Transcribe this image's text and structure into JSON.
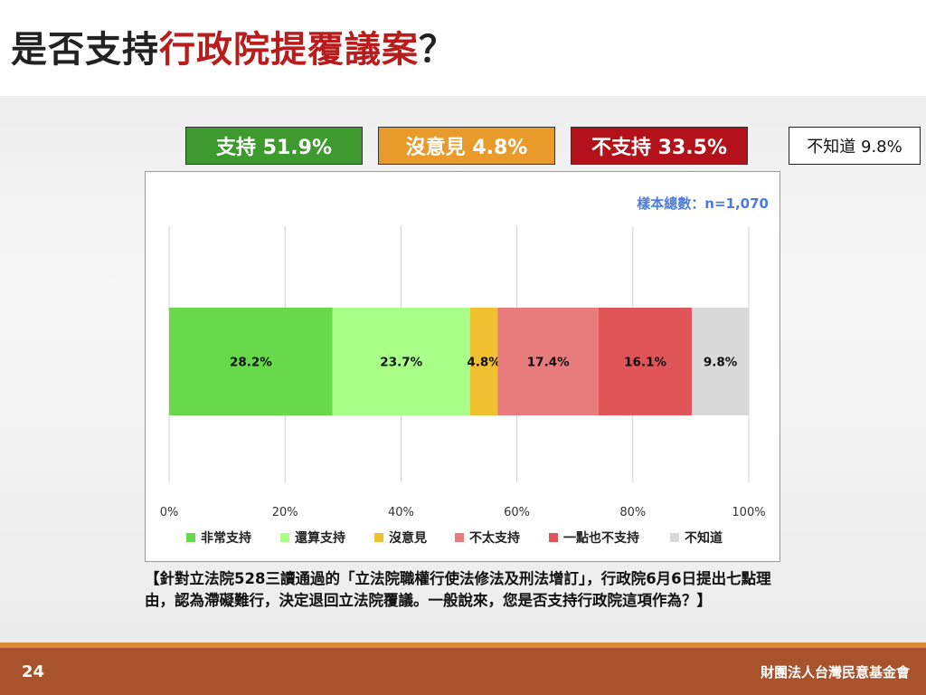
{
  "title": {
    "prefix": "是否支持",
    "highlight": "行政院提覆議案",
    "suffix": "？"
  },
  "summary": {
    "support": "支持 51.9%",
    "neutral": "沒意見 4.8%",
    "oppose": "不支持 33.5%",
    "dont_know": "不知道 9.8%"
  },
  "sample_size": "樣本總數：n=1,070",
  "colors": {
    "summary_support": "#3e9a2e",
    "summary_neutral": "#e89a2a",
    "summary_oppose": "#b3121b"
  },
  "chart_data": {
    "type": "bar",
    "orientation": "horizontal-stacked",
    "xlim": [
      0,
      100
    ],
    "x_ticks": [
      "0%",
      "20%",
      "40%",
      "60%",
      "80%",
      "100%"
    ],
    "grid": true,
    "legend_position": "bottom",
    "series": [
      {
        "name": "非常支持",
        "value": 28.2,
        "label": "28.2%",
        "color": "#67d94a"
      },
      {
        "name": "還算支持",
        "value": 23.7,
        "label": "23.7%",
        "color": "#aaff88"
      },
      {
        "name": "沒意見",
        "value": 4.8,
        "label": "4.8%",
        "color": "#f0c030"
      },
      {
        "name": "不太支持",
        "value": 17.4,
        "label": "17.4%",
        "color": "#e87c7c"
      },
      {
        "name": "一點也不支持",
        "value": 16.1,
        "label": "16.1%",
        "color": "#e05558"
      },
      {
        "name": "不知道",
        "value": 9.8,
        "label": "9.8%",
        "color": "#d9d9d9"
      }
    ]
  },
  "question": "【針對立法院528三讀通過的「立法院職權行使法修法及刑法增訂」，行政院6月6日提出七點理由，認為滯礙難行，決定退回立法院覆議。一般說來，您是否支持行政院這項作為？】",
  "footer": {
    "page_number": "24",
    "organization": "財團法人台灣民意基金會"
  }
}
